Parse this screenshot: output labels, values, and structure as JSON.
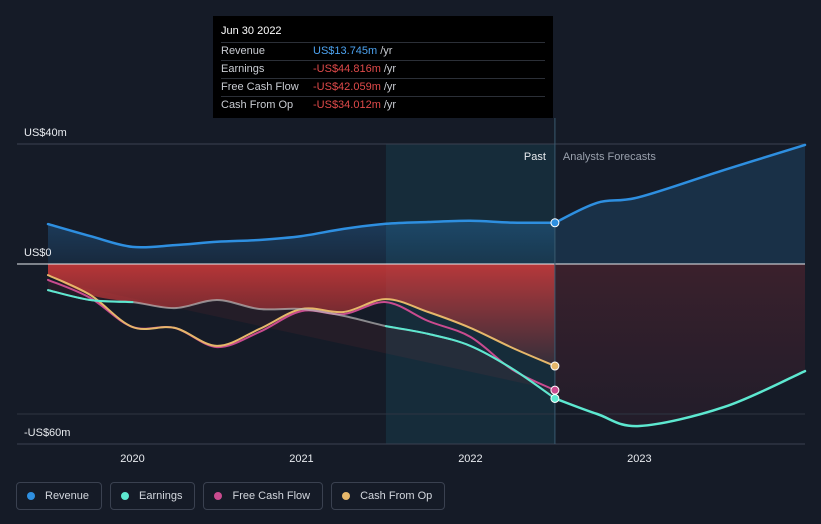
{
  "colors": {
    "revenue": "#2e8fe0",
    "earnings": "#5de8d0",
    "free_cash_flow": "#c94b8f",
    "cash_from_op": "#e6b76a",
    "negative_red": "#e04a4a",
    "revenue_blue": "#4da3f0"
  },
  "tooltip": {
    "date": "Jun 30 2022",
    "rows": [
      {
        "label": "Revenue",
        "value": "US$13.745m",
        "unit": "/yr"
      },
      {
        "label": "Earnings",
        "value": "-US$44.816m",
        "unit": "/yr"
      },
      {
        "label": "Free Cash Flow",
        "value": "-US$42.059m",
        "unit": "/yr"
      },
      {
        "label": "Cash From Op",
        "value": "-US$34.012m",
        "unit": "/yr"
      }
    ]
  },
  "legend": [
    {
      "label": "Revenue",
      "key": "revenue"
    },
    {
      "label": "Earnings",
      "key": "earnings"
    },
    {
      "label": "Free Cash Flow",
      "key": "free_cash_flow"
    },
    {
      "label": "Cash From Op",
      "key": "cash_from_op"
    }
  ],
  "chart_data": {
    "type": "area",
    "title": "",
    "xlabel": "",
    "ylabel": "",
    "y_tick_labels": [
      {
        "label": "US$40m",
        "value": 40
      },
      {
        "label": "US$0",
        "value": 0
      },
      {
        "label": "-US$60m",
        "value": -60
      }
    ],
    "ylim": [
      -60,
      40
    ],
    "xlim": [
      2019.5,
      2023.98
    ],
    "x_tick_labels": [
      {
        "label": "2020",
        "value": 2020
      },
      {
        "label": "2021",
        "value": 2021
      },
      {
        "label": "2022",
        "value": 2022
      },
      {
        "label": "2023",
        "value": 2023
      }
    ],
    "past_label": "Past",
    "forecast_label": "Analysts Forecasts",
    "divider_x": 2022.5,
    "highlight_start_x": 2021.5,
    "series": [
      {
        "name": "Revenue",
        "key": "revenue",
        "kind": "past",
        "x": [
          2019.5,
          2019.75,
          2020.0,
          2020.25,
          2020.5,
          2020.75,
          2021.0,
          2021.25,
          2021.5,
          2021.75,
          2022.0,
          2022.25,
          2022.5
        ],
        "values": [
          13.3,
          9.3,
          5.7,
          6.3,
          7.4,
          8.0,
          9.3,
          11.7,
          13.4,
          14.0,
          14.4,
          13.8,
          13.745
        ]
      },
      {
        "name": "Revenue Forecast",
        "key": "revenue",
        "kind": "forecast",
        "x": [
          2022.5,
          2022.75,
          2023.0,
          2023.5,
          2023.98
        ],
        "values": [
          13.745,
          20.4,
          22.3,
          31.3,
          39.7
        ]
      },
      {
        "name": "Earnings",
        "key": "earnings",
        "kind": "past",
        "x": [
          2019.5,
          2019.75,
          2020.0,
          2020.25,
          2020.5,
          2020.75,
          2021.0,
          2021.25,
          2021.5,
          2021.75,
          2022.0,
          2022.25,
          2022.5
        ],
        "values": [
          -8.7,
          -12.0,
          -12.7,
          -14.7,
          -12.0,
          -15.0,
          -15.0,
          -17.3,
          -20.7,
          -23.3,
          -27.3,
          -35.0,
          -44.816
        ]
      },
      {
        "name": "Earnings Forecast",
        "key": "earnings",
        "kind": "forecast",
        "x": [
          2022.5,
          2022.75,
          2023.0,
          2023.5,
          2023.98
        ],
        "values": [
          -44.816,
          -50.0,
          -54.0,
          -47.7,
          -35.7
        ]
      },
      {
        "name": "Free Cash Flow",
        "key": "free_cash_flow",
        "kind": "past",
        "x": [
          2019.5,
          2019.75,
          2020.0,
          2020.25,
          2020.5,
          2020.75,
          2021.0,
          2021.25,
          2021.5,
          2021.75,
          2022.0,
          2022.25,
          2022.5
        ],
        "values": [
          -5.3,
          -11.3,
          -21.0,
          -21.3,
          -27.7,
          -22.7,
          -15.7,
          -16.7,
          -12.7,
          -19.0,
          -24.3,
          -35.3,
          -42.059
        ]
      },
      {
        "name": "Cash From Op",
        "key": "cash_from_op",
        "kind": "past",
        "x": [
          2019.5,
          2019.75,
          2020.0,
          2020.25,
          2020.5,
          2020.75,
          2021.0,
          2021.25,
          2021.5,
          2021.75,
          2022.0,
          2022.25,
          2022.5
        ],
        "values": [
          -3.7,
          -10.3,
          -21.0,
          -21.3,
          -27.3,
          -21.7,
          -15.0,
          -16.0,
          -11.7,
          -16.0,
          -21.3,
          -28.0,
          -34.012
        ]
      }
    ]
  }
}
